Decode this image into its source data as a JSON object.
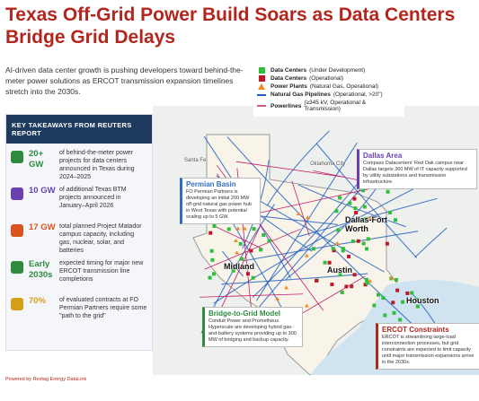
{
  "header": {
    "title": "Texas Off-Grid Power Build Soars as Data Centers Bridge Grid Delays",
    "subtitle": "AI-driven data center growth is pushing developers toward behind-the-meter power solutions as ERCOT transmission expansion timelines stretch into the 2030s."
  },
  "takeaways": {
    "heading": "KEY TAKEAWAYS FROM REUTERS REPORT",
    "items": [
      {
        "stat": "20+ GW",
        "text": "of behind-the-meter power projects for data centers announced in Texas during 2024–2025"
      },
      {
        "stat": "10 GW",
        "text": "of additional Texas BTM projects announced in January–April 2026"
      },
      {
        "stat": "17 GW",
        "text": "total planned Project Matador campus capacity, including gas, nuclear, solar, and batteries"
      },
      {
        "stat": "Early 2030s",
        "text": "expected timing for major new ERCOT transmission line completions"
      },
      {
        "stat": "70%",
        "text": "of evaluated contracts at FO Permian Partners require some \"path to the grid\""
      }
    ]
  },
  "legend": [
    {
      "name": "Data Centers",
      "detail": "(Under Development)"
    },
    {
      "name": "Data Centers",
      "detail": "(Operational)"
    },
    {
      "name": "Power Plants",
      "detail": "(Natural Gas, Operational)"
    },
    {
      "name": "Natural Gas Pipelines",
      "detail": "(Operational, >20\")"
    },
    {
      "name": "Powerlines",
      "detail": "(≥345 kV, Operational & Transmission)"
    }
  ],
  "callouts": [
    {
      "title": "Permian Basin",
      "text": "FO Permian Partners is developing an initial 200 MW off-grid natural gas power hub in West Texas with potential scaling up to 5 GW."
    },
    {
      "title": "Dallas Area",
      "text": "Compass Datacenters' Red Oak campus near Dallas targets 360 MW of IT capacity supported by utility substations and transmission infrastructure."
    },
    {
      "title": "Bridge-to-Grid Model",
      "text": "Conduit Power and Prometheus Hyperscale are developing hybrid gas-and-battery systems providing up to 300 MW of bridging and backup capacity."
    },
    {
      "title": "ERCOT Constraints",
      "text": "ERCOT is streamlining large-load interconnection processes, but grid constraints are expected to limit capacity until major transmission expansions arrive in the 2030s."
    }
  ],
  "cities": [
    "Midland",
    "Austin",
    "Dallas-Fort Worth",
    "Houston",
    "Santa Fe",
    "Oklahoma City"
  ],
  "footer": "Powered by Rextag Energy DataLink"
}
